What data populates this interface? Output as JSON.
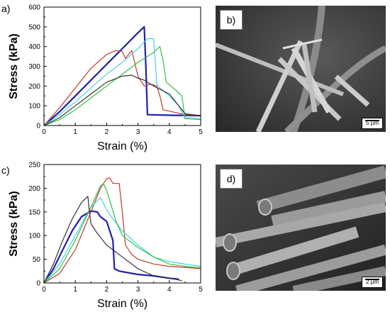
{
  "labels": {
    "a": "a)",
    "b": "b)",
    "c": "c)",
    "d": "d)"
  },
  "sem_b": {
    "scalebar": "5 µm"
  },
  "sem_d": {
    "scalebar": "2 µm"
  },
  "chart_data": [
    {
      "id": "a",
      "type": "line",
      "xlabel": "Strain (%)",
      "ylabel": "Stress (kPa)",
      "xlim": [
        0,
        5
      ],
      "ylim": [
        0,
        600
      ],
      "xticks": [
        0,
        1,
        2,
        3,
        4,
        5
      ],
      "yticks": [
        0,
        100,
        200,
        300,
        400,
        500,
        600
      ],
      "series": [
        {
          "color": "#1f1fb0",
          "width": 2.2,
          "x": [
            0,
            0.5,
            1.0,
            1.5,
            2.0,
            2.5,
            3.0,
            3.2,
            3.25,
            3.3,
            4.0,
            5.0
          ],
          "y": [
            0,
            70,
            150,
            230,
            310,
            390,
            470,
            500,
            300,
            55,
            52,
            50
          ]
        },
        {
          "color": "#c0392b",
          "width": 1.2,
          "x": [
            0,
            0.5,
            1.0,
            1.5,
            2.0,
            2.3,
            2.5,
            2.6,
            2.8,
            3.0,
            3.2,
            3.4,
            3.6,
            3.7,
            3.8,
            4.5,
            5.0
          ],
          "y": [
            0,
            90,
            190,
            290,
            360,
            380,
            375,
            340,
            380,
            250,
            200,
            210,
            200,
            150,
            80,
            55,
            50
          ]
        },
        {
          "color": "#48cfe6",
          "width": 1.2,
          "x": [
            0,
            0.5,
            1.0,
            1.5,
            2.0,
            2.5,
            3.0,
            3.3,
            3.5,
            3.6,
            3.7,
            4.0,
            4.3,
            4.5,
            5.0
          ],
          "y": [
            0,
            55,
            120,
            190,
            260,
            320,
            390,
            440,
            440,
            210,
            190,
            150,
            100,
            40,
            35
          ]
        },
        {
          "color": "#35c040",
          "width": 1.2,
          "x": [
            0,
            0.5,
            1.0,
            1.5,
            2.0,
            2.5,
            3.0,
            3.5,
            3.7,
            3.8,
            3.9,
            4.2,
            4.4,
            4.5,
            5.0
          ],
          "y": [
            0,
            30,
            80,
            140,
            200,
            260,
            320,
            370,
            400,
            330,
            220,
            180,
            150,
            35,
            30
          ]
        },
        {
          "color": "#333333",
          "width": 1.2,
          "x": [
            0,
            0.5,
            1.0,
            1.5,
            2.0,
            2.5,
            2.8,
            3.0,
            3.2,
            3.5,
            4.0,
            4.5,
            5.0
          ],
          "y": [
            0,
            40,
            100,
            160,
            220,
            250,
            255,
            240,
            230,
            200,
            160,
            60,
            50
          ]
        }
      ]
    },
    {
      "id": "c",
      "type": "line",
      "xlabel": "Strain (%)",
      "ylabel": "Stress (kPa)",
      "xlim": [
        0,
        5
      ],
      "ylim": [
        0,
        250
      ],
      "xticks": [
        0,
        1,
        2,
        3,
        4,
        5
      ],
      "yticks": [
        0,
        50,
        100,
        150,
        200,
        250
      ],
      "series": [
        {
          "color": "#1f1fb0",
          "width": 2.2,
          "x": [
            0,
            0.3,
            0.6,
            0.9,
            1.2,
            1.5,
            1.7,
            1.8,
            2.0,
            2.2,
            2.25,
            2.4,
            3.0,
            3.5,
            4.0,
            4.3
          ],
          "y": [
            0,
            30,
            70,
            110,
            140,
            152,
            150,
            140,
            130,
            90,
            30,
            25,
            18,
            15,
            10,
            8
          ]
        },
        {
          "color": "#c0392b",
          "width": 1.2,
          "x": [
            0,
            0.5,
            1.0,
            1.5,
            1.8,
            2.0,
            2.1,
            2.2,
            2.4,
            2.5,
            2.6,
            2.8,
            3.0,
            3.5,
            4.0,
            4.5,
            5.0
          ],
          "y": [
            0,
            20,
            70,
            150,
            200,
            220,
            222,
            210,
            210,
            150,
            80,
            60,
            50,
            40,
            35,
            33,
            30
          ]
        },
        {
          "color": "#48cfe6",
          "width": 1.2,
          "x": [
            0,
            0.5,
            1.0,
            1.5,
            1.8,
            2.0,
            2.2,
            2.5,
            3.0,
            3.5,
            4.0,
            4.5,
            5.0
          ],
          "y": [
            0,
            40,
            100,
            160,
            180,
            155,
            135,
            110,
            80,
            55,
            45,
            40,
            35
          ]
        },
        {
          "color": "#35c040",
          "width": 1.2,
          "x": [
            0,
            0.5,
            1.0,
            1.5,
            1.8,
            1.9,
            2.0,
            2.3,
            2.5,
            3.0,
            3.5,
            4.0,
            4.5,
            5.0
          ],
          "y": [
            0,
            30,
            90,
            160,
            205,
            210,
            195,
            130,
            100,
            75,
            55,
            40,
            35,
            32
          ]
        },
        {
          "color": "#333333",
          "width": 1.2,
          "x": [
            0,
            0.3,
            0.6,
            0.9,
            1.2,
            1.4,
            1.45,
            1.5,
            1.7,
            2.0,
            2.5,
            3.0,
            3.5,
            4.0,
            4.4
          ],
          "y": [
            0,
            40,
            90,
            135,
            170,
            183,
            150,
            125,
            105,
            80,
            55,
            30,
            15,
            10,
            5
          ]
        }
      ]
    }
  ]
}
